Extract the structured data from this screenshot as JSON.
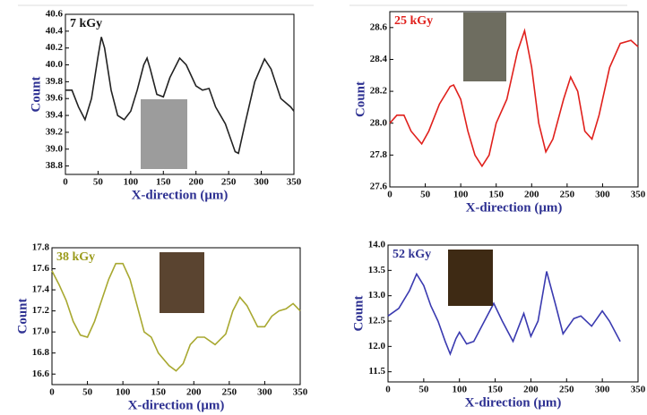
{
  "chart_data": [
    {
      "type": "line",
      "title": "7 kGy",
      "title_color": "#111111",
      "color": "#222222",
      "xlabel": "X-direction (μm)",
      "ylabel": "Count",
      "x": [
        0,
        10,
        20,
        30,
        40,
        50,
        55,
        60,
        70,
        80,
        90,
        100,
        110,
        120,
        125,
        130,
        140,
        150,
        160,
        175,
        185,
        200,
        210,
        220,
        230,
        245,
        260,
        265,
        275,
        290,
        305,
        315,
        330,
        345,
        350
      ],
      "values": [
        39.7,
        39.7,
        39.5,
        39.35,
        39.6,
        40.1,
        40.33,
        40.2,
        39.7,
        39.4,
        39.35,
        39.45,
        39.7,
        40.0,
        40.08,
        39.95,
        39.65,
        39.62,
        39.85,
        40.08,
        40.0,
        39.75,
        39.7,
        39.72,
        39.5,
        39.3,
        38.97,
        38.95,
        39.3,
        39.8,
        40.07,
        39.95,
        39.6,
        39.5,
        39.45
      ],
      "xlim": [
        0,
        350
      ],
      "xticks": [
        0,
        50,
        100,
        150,
        200,
        250,
        300,
        350
      ],
      "ylim": [
        38.7,
        40.6
      ],
      "yticks": [
        38.8,
        {
          "value": 39,
          "label": "39.0"
        },
        39.2,
        39.4,
        39.6,
        39.8,
        {
          "value": 40,
          "label": "40.0"
        },
        40.2,
        40.4,
        40.6
      ]
    },
    {
      "type": "line",
      "title": "25 kGy",
      "title_color": "#e0201c",
      "color": "#e0201c",
      "xlabel": "X-direction (μm)",
      "ylabel": "Count",
      "x": [
        0,
        10,
        20,
        30,
        45,
        55,
        70,
        85,
        90,
        100,
        110,
        120,
        130,
        140,
        150,
        165,
        180,
        190,
        200,
        210,
        220,
        230,
        245,
        255,
        265,
        275,
        285,
        295,
        310,
        325,
        340,
        350
      ],
      "values": [
        28.0,
        28.05,
        28.05,
        27.95,
        27.87,
        27.95,
        28.12,
        28.23,
        28.24,
        28.15,
        27.95,
        27.8,
        27.73,
        27.8,
        28.0,
        28.15,
        28.45,
        28.58,
        28.35,
        28.0,
        27.82,
        27.9,
        28.15,
        28.29,
        28.2,
        27.95,
        27.9,
        28.05,
        28.35,
        28.5,
        28.52,
        28.48
      ],
      "xlim": [
        0,
        350
      ],
      "xticks": [
        0,
        50,
        100,
        150,
        200,
        250,
        300,
        350
      ],
      "ylim": [
        27.6,
        28.7
      ],
      "yticks": [
        27.6,
        27.8,
        {
          "value": 28,
          "label": "28.0"
        },
        28.2,
        28.4,
        28.6
      ]
    },
    {
      "type": "line",
      "title": "38 kGy",
      "title_color": "#9a9a1a",
      "color": "#a8a830",
      "xlabel": "X-direction (μm)",
      "ylabel": "Count",
      "x": [
        0,
        10,
        20,
        30,
        40,
        50,
        60,
        70,
        80,
        90,
        100,
        110,
        120,
        130,
        140,
        150,
        165,
        175,
        185,
        195,
        205,
        215,
        230,
        245,
        255,
        265,
        275,
        290,
        300,
        310,
        320,
        330,
        340,
        350
      ],
      "values": [
        17.58,
        17.45,
        17.3,
        17.1,
        16.97,
        16.95,
        17.1,
        17.3,
        17.5,
        17.65,
        17.65,
        17.5,
        17.25,
        17.0,
        16.95,
        16.8,
        16.68,
        16.63,
        16.7,
        16.88,
        16.95,
        16.95,
        16.88,
        16.98,
        17.2,
        17.33,
        17.25,
        17.05,
        17.05,
        17.15,
        17.2,
        17.22,
        17.27,
        17.2
      ],
      "xlim": [
        0,
        350
      ],
      "xticks": [
        0,
        50,
        100,
        150,
        200,
        250,
        300,
        350
      ],
      "ylim": [
        16.5,
        17.8
      ],
      "yticks": [
        16.6,
        16.8,
        {
          "value": 17,
          "label": "17.0"
        },
        17.2,
        17.4,
        17.6,
        17.8
      ]
    },
    {
      "type": "line",
      "title": "52 kGy",
      "title_color": "#2e3192",
      "color": "#3a3ab0",
      "xlabel": "X-direction (μm)",
      "ylabel": "Count",
      "x": [
        0,
        15,
        30,
        40,
        50,
        60,
        70,
        80,
        87,
        95,
        100,
        110,
        120,
        135,
        148,
        160,
        175,
        190,
        200,
        210,
        222,
        235,
        245,
        260,
        270,
        285,
        300,
        310,
        325
      ],
      "values": [
        12.6,
        12.75,
        13.1,
        13.43,
        13.2,
        12.8,
        12.5,
        12.1,
        11.85,
        12.15,
        12.28,
        12.05,
        12.1,
        12.5,
        12.85,
        12.5,
        12.1,
        12.65,
        12.2,
        12.5,
        13.48,
        12.8,
        12.25,
        12.55,
        12.6,
        12.4,
        12.7,
        12.5,
        12.1
      ],
      "xlim": [
        0,
        350
      ],
      "xticks": [
        0,
        50,
        100,
        150,
        200,
        250,
        300,
        350
      ],
      "ylim": [
        11.3,
        14.0
      ],
      "yticks": [
        11.5,
        {
          "value": 12,
          "label": "12.0"
        },
        12.5,
        {
          "value": 13,
          "label": "13.0"
        },
        13.5,
        {
          "value": 14,
          "label": "14.0"
        }
      ]
    }
  ]
}
